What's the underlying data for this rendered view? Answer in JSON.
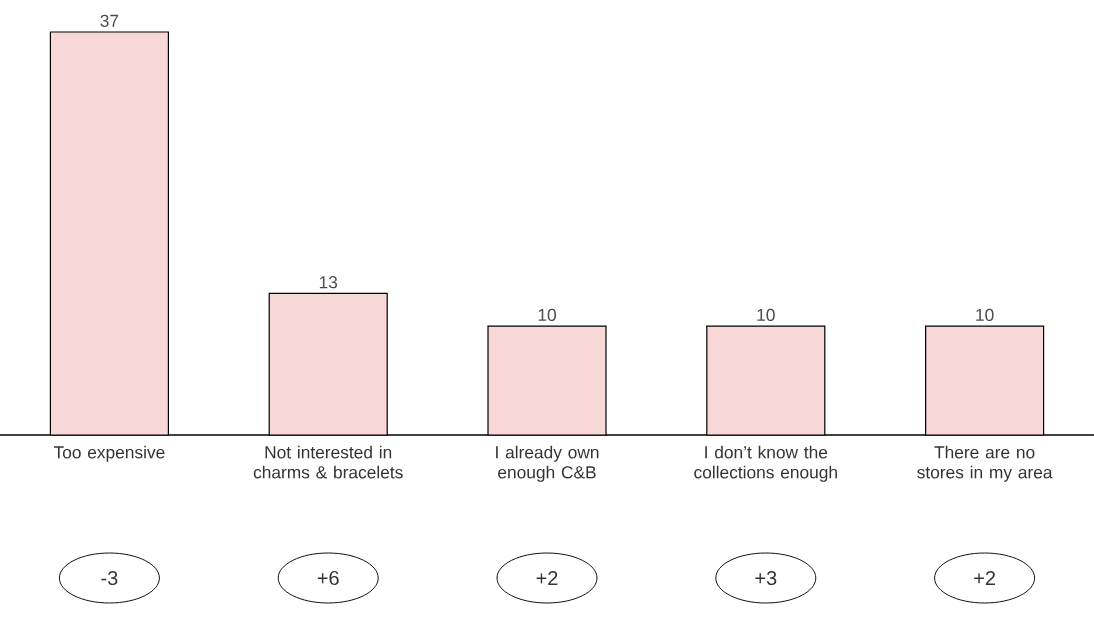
{
  "chart_data": {
    "type": "bar",
    "categories": [
      "Too expensive",
      "Not interested in charms & bracelets",
      "I already own enough C&B",
      "I don’t know the collections enough",
      "There are no stores in my area"
    ],
    "values": [
      37,
      13,
      10,
      10,
      10
    ],
    "color": "#f8d7d7",
    "data_labels": true,
    "annotations": [
      "-3",
      "+6",
      "+2",
      "+3",
      "+2"
    ]
  }
}
